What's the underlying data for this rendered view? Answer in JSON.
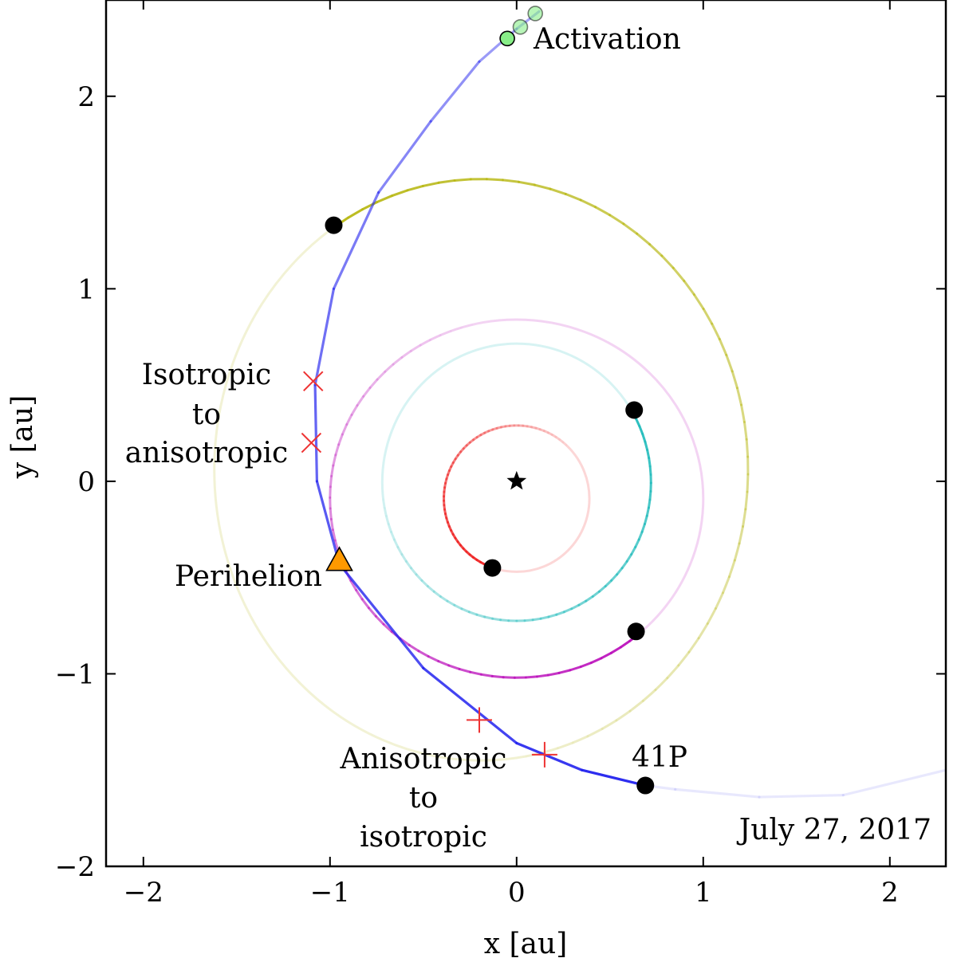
{
  "chart_data": {
    "type": "line",
    "xlabel": "x [au]",
    "ylabel": "y [au]",
    "xlim": [
      -2.2,
      2.3
    ],
    "ylim": [
      -2.0,
      2.5
    ],
    "xticks": [
      {
        "value": -2,
        "label": "−2"
      },
      {
        "value": -1,
        "label": "−1"
      },
      {
        "value": 0,
        "label": "0"
      },
      {
        "value": 1,
        "label": "1"
      },
      {
        "value": 2,
        "label": "2"
      }
    ],
    "yticks": [
      {
        "value": -2,
        "label": "−2"
      },
      {
        "value": -1,
        "label": "−1"
      },
      {
        "value": 0,
        "label": "0"
      },
      {
        "value": 1,
        "label": "1"
      },
      {
        "value": 2,
        "label": "2"
      }
    ],
    "grid": false,
    "sun": {
      "x": 0,
      "y": 0,
      "marker": "star",
      "color": "#000000"
    },
    "orbits": [
      {
        "key": "mercury",
        "color": "#ee2222",
        "cx": 0.0,
        "cy": -0.09,
        "rx": 0.39,
        "ry": 0.38,
        "planet": {
          "x": -0.13,
          "y": -0.45
        }
      },
      {
        "key": "earth",
        "color": "#22bbbb",
        "cx": 0.0,
        "cy": -0.005,
        "rx": 0.72,
        "ry": 0.72,
        "planet": {
          "x": 0.63,
          "y": 0.37
        }
      },
      {
        "key": "mars",
        "color": "#bb11bb",
        "cx": 0.0,
        "cy": -0.09,
        "rx": 1.0,
        "ry": 0.93,
        "planet": {
          "x": 0.64,
          "y": -0.78
        }
      },
      {
        "key": "jupiter",
        "color": "#b8b815",
        "cx": -0.19,
        "cy": 0.06,
        "rx": 1.43,
        "ry": 1.51,
        "planet": {
          "x": -0.98,
          "y": 1.33
        }
      }
    ],
    "comet": {
      "name": "41P",
      "color": "#2222ee",
      "x": [
        2.3,
        1.75,
        1.3,
        0.85,
        0.69,
        0.35,
        0.0,
        -0.5,
        -0.95,
        -1.07,
        -1.08,
        -0.98,
        -0.74,
        -0.46,
        -0.2,
        0.0,
        0.12
      ],
      "y": [
        -1.5,
        -1.63,
        -1.64,
        -1.6,
        -1.58,
        -1.5,
        -1.36,
        -0.97,
        -0.43,
        0.0,
        0.5,
        1.0,
        1.5,
        1.87,
        2.18,
        2.35,
        2.44
      ],
      "current": {
        "x": 0.69,
        "y": -1.58
      }
    },
    "perihelion": {
      "x": -0.95,
      "y": -0.41,
      "color": "#ff9900"
    },
    "activation_points": [
      {
        "x": -0.05,
        "y": 2.3
      },
      {
        "x": 0.02,
        "y": 2.36
      },
      {
        "x": 0.1,
        "y": 2.43
      }
    ],
    "isotropic_to_anisotropic_markers": [
      {
        "x": -1.09,
        "y": 0.52
      },
      {
        "x": -1.1,
        "y": 0.2
      }
    ],
    "anisotropic_to_isotropic_markers": [
      {
        "x": -0.2,
        "y": -1.24
      },
      {
        "x": 0.15,
        "y": -1.42
      }
    ],
    "annotations": {
      "activation": "Activation",
      "iso_to_aniso": [
        "Isotropic",
        "to",
        "anisotropic"
      ],
      "perihelion": "Perihelion",
      "aniso_to_iso": [
        "Anisotropic",
        "to",
        "isotropic"
      ],
      "comet_name": "41P",
      "date": "July 27, 2017"
    }
  }
}
